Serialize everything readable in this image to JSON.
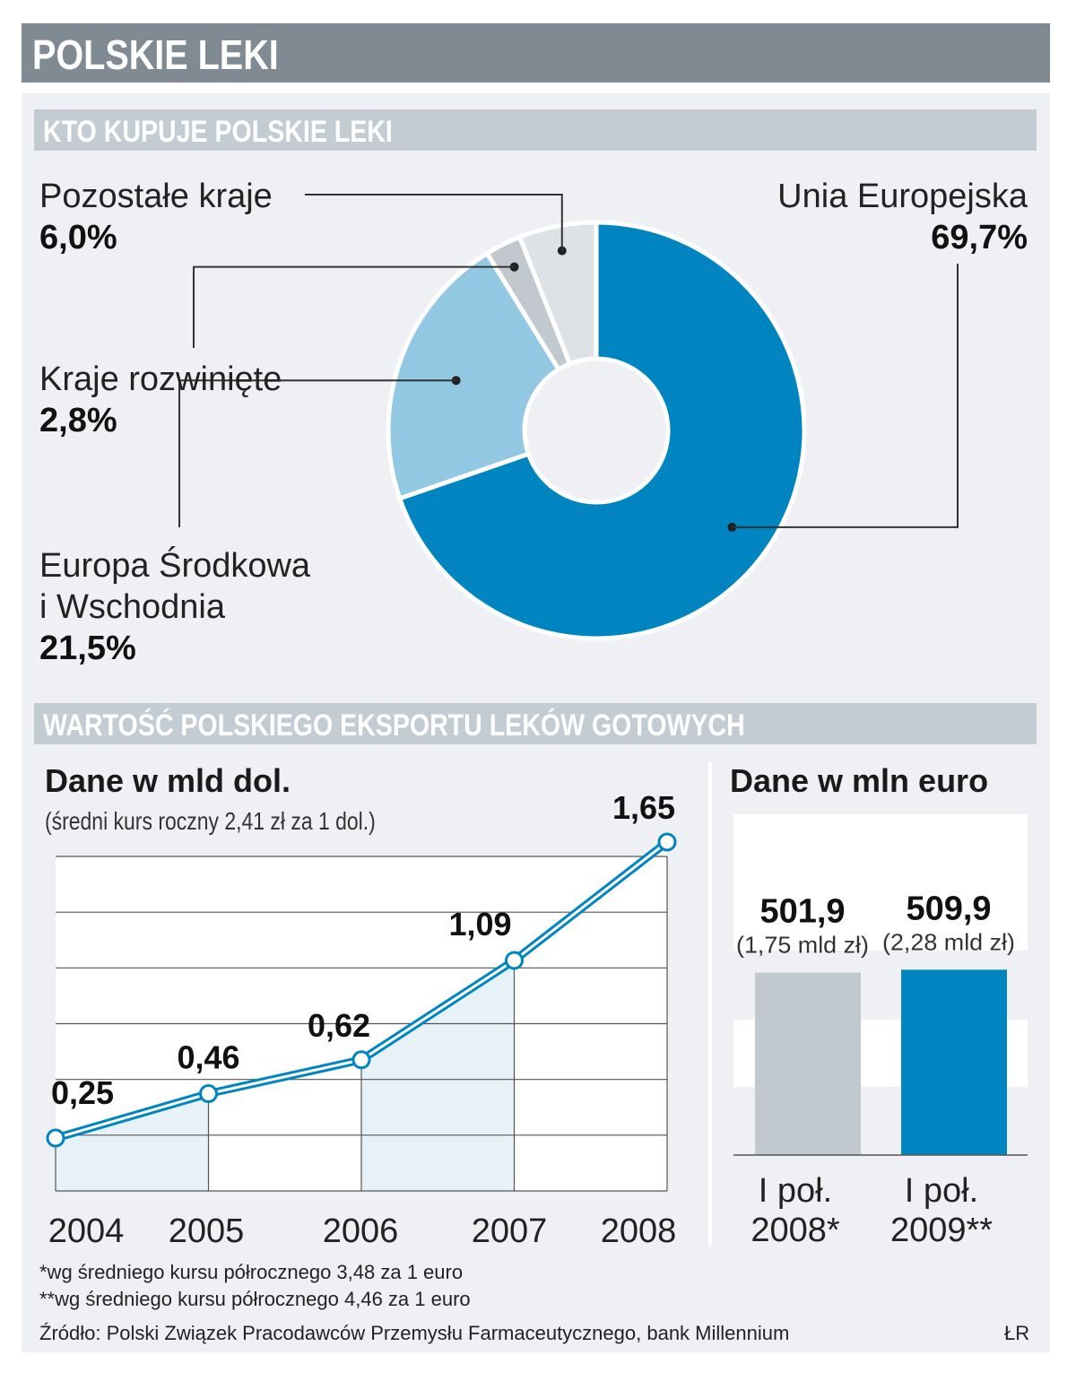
{
  "title": "POLSKIE LEKI",
  "sections": {
    "buyers": "KTO KUPUJE POLSKIE LEKI",
    "export": "WARTOŚĆ POLSKIEGO EKSPORTU LEKÓW GOTOWYCH"
  },
  "colors": {
    "header_bg": "#7f8a92",
    "section_bg": "#c3ccd3",
    "panel_bg": "#eef0f3",
    "accent_blue": "#0085c1",
    "light_blue": "#93c8e3",
    "gray": "#c1c9cf",
    "light_gray": "#dde2e7"
  },
  "chart_data": [
    {
      "type": "pie",
      "variant": "donut",
      "slices": [
        {
          "label": "Unia Europejska",
          "value": 69.7,
          "display": "69,7%",
          "color": "#0085c1"
        },
        {
          "label_lines": [
            "Europa Środkowa",
            "i Wschodnia"
          ],
          "value": 21.5,
          "display": "21,5%",
          "color": "#93c8e3"
        },
        {
          "label": "Kraje rozwinięte",
          "value": 2.8,
          "display": "2,8%",
          "color": "#c1c9cf"
        },
        {
          "label": "Pozostałe kraje",
          "value": 6.0,
          "display": "6,0%",
          "color": "#dde2e7"
        }
      ]
    },
    {
      "type": "area",
      "title": "Dane w mld dol.",
      "subtitle": "(średni kurs roczny 2,41 zł za 1 dol.)",
      "x": [
        "2004",
        "2005",
        "2006",
        "2007",
        "2008"
      ],
      "values": [
        0.25,
        0.46,
        0.62,
        1.09,
        1.65
      ],
      "labels": [
        "0,25",
        "0,46",
        "0,62",
        "1,09",
        "1,65"
      ],
      "ylim": [
        0,
        1.9
      ],
      "grid": true
    },
    {
      "type": "bar",
      "title": "Dane w mln euro",
      "categories": [
        [
          "I poł.",
          "2008*"
        ],
        [
          "I poł.",
          "2009**"
        ]
      ],
      "values": [
        501.9,
        509.9
      ],
      "labels": [
        "501,9",
        "509,9"
      ],
      "sublabels": [
        "(1,75 mld zł)",
        "(2,28 mld zł)"
      ],
      "colors": [
        "#c1c9cf",
        "#0085c1"
      ]
    }
  ],
  "footnotes": [
    "*wg średniego kursu półrocznego 3,48 za 1 euro",
    "**wg średniego kursu półrocznego 4,46 za 1 euro"
  ],
  "source": "Źródło: Polski Związek Pracodawców Przemysłu Farmaceutycznego, bank Millennium",
  "author": "ŁR"
}
